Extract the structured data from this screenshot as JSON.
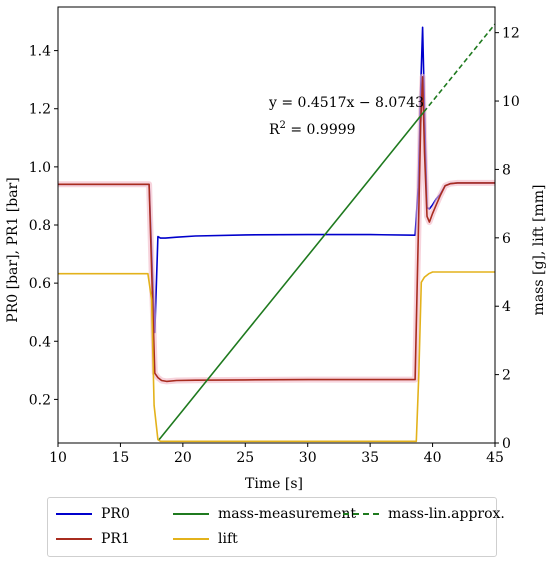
{
  "chart_data": {
    "type": "line",
    "xlabel": "Time [s]",
    "ylabel_left": "PR0 [bar], PR1 [bar]",
    "ylabel_right": "mass [g], lift [mm]",
    "xlim": [
      10,
      45
    ],
    "ylim_left": [
      0.05,
      1.55
    ],
    "ylim_right": [
      0,
      12.75
    ],
    "xticks": [
      10,
      15,
      20,
      25,
      30,
      35,
      40,
      45
    ],
    "yticks_left": [
      0.2,
      0.4,
      0.6,
      0.8,
      1.0,
      1.2,
      1.4
    ],
    "yticks_left_labels": [
      "0.2",
      "0.4",
      "0.6",
      "0.8",
      "1.0",
      "1.2",
      "1.4"
    ],
    "yticks_right": [
      0,
      2,
      4,
      6,
      8,
      10,
      12
    ],
    "grid": false,
    "legend_position": "bottom",
    "annotation_eq": {
      "prefix": "y = 0.4517x − 8.0743"
    },
    "annotation_r2": {
      "prefix": "R",
      "sup": "2",
      "suffix": " = 0.9999"
    },
    "series": [
      {
        "name": "PR0",
        "axis": "left",
        "color": "#0000cc",
        "dash": "solid",
        "x": [
          10,
          17,
          17.3,
          17.55,
          17.75,
          17.9,
          18.0,
          18.2,
          18.6,
          19.5,
          21,
          25,
          30,
          35,
          38.6,
          38.85,
          39.05,
          39.2,
          39.35,
          39.55,
          39.75,
          40.0,
          40.3,
          40.6,
          41.0,
          41.4,
          42,
          43,
          44,
          45
        ],
        "y": [
          0.94,
          0.94,
          0.94,
          0.65,
          0.43,
          0.62,
          0.76,
          0.755,
          0.755,
          0.758,
          0.762,
          0.766,
          0.767,
          0.767,
          0.765,
          0.93,
          1.27,
          1.48,
          1.2,
          0.86,
          0.855,
          0.87,
          0.89,
          0.905,
          0.935,
          0.942,
          0.945,
          0.945,
          0.945,
          0.945
        ]
      },
      {
        "name": "PR1",
        "axis": "left",
        "color": "#a82c1f",
        "dash": "solid",
        "x": [
          10,
          17,
          17.3,
          17.5,
          17.75,
          18.0,
          18.3,
          18.7,
          19.5,
          21,
          25,
          30,
          35,
          38.6,
          38.85,
          39.05,
          39.2,
          39.35,
          39.55,
          39.75,
          40.0,
          40.3,
          40.6,
          41.0,
          41.4,
          42,
          43,
          44,
          45
        ],
        "y": [
          0.94,
          0.94,
          0.94,
          0.65,
          0.29,
          0.275,
          0.265,
          0.262,
          0.265,
          0.266,
          0.267,
          0.268,
          0.268,
          0.268,
          0.75,
          1.15,
          1.31,
          1.05,
          0.83,
          0.81,
          0.84,
          0.87,
          0.9,
          0.935,
          0.942,
          0.945,
          0.945,
          0.945,
          0.945
        ]
      },
      {
        "name": "mass-measurement",
        "axis": "right",
        "color": "#1f7a1f",
        "dash": "solid",
        "x": [
          18.1,
          20,
          25,
          30,
          35,
          39.3
        ],
        "y": [
          0.1,
          0.96,
          3.22,
          5.47,
          7.73,
          9.68
        ]
      },
      {
        "name": "lift",
        "axis": "right",
        "color": "#e3b21b",
        "dash": "solid",
        "x": [
          10,
          17.2,
          17.5,
          17.7,
          17.85,
          18.0,
          18.2,
          38.7,
          38.9,
          39.1,
          39.35,
          39.7,
          40,
          45
        ],
        "y": [
          4.95,
          4.95,
          4.2,
          1.1,
          0.6,
          0.1,
          0.05,
          0.05,
          2.0,
          4.7,
          4.85,
          4.95,
          5.0,
          5.0
        ]
      },
      {
        "name": "mass-lin.approx.",
        "axis": "right",
        "color": "#1f7a1f",
        "dash": "dashed",
        "x": [
          39.3,
          45
        ],
        "y": [
          9.68,
          12.25
        ]
      }
    ]
  }
}
